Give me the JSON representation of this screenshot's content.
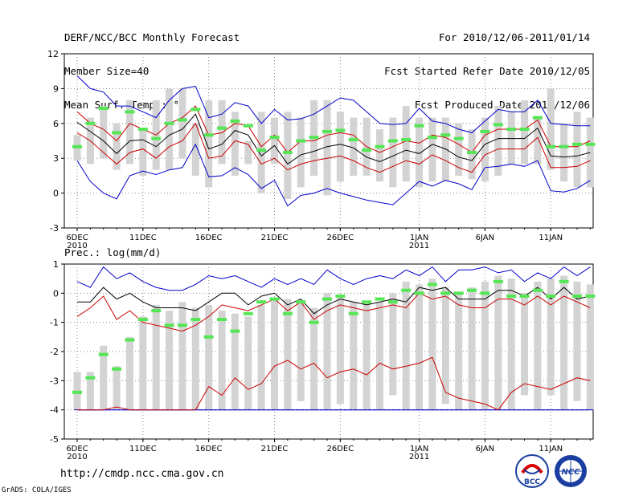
{
  "header": {
    "left": [
      "DERF/NCC/BCC Monthly Forecast",
      "Member Size=40",
      "Mean Surf. Temp.: °C"
    ],
    "right": [
      "For 2010/12/06-2011/01/14",
      "Fcst Started Refer Date 2010/12/05",
      "Fcst Produced Date 2010/12/06"
    ]
  },
  "footer": {
    "url": "http://cmdp.ncc.cma.gov.cn",
    "grads": "GrADS: COLA/IGES",
    "logo_bcc": "BCC",
    "logo_ncc": "NCC"
  },
  "colors": {
    "box": "#d3d3d3",
    "median": "#55e655",
    "mean": "#000000",
    "inner": "#cc0000",
    "outer": "#0000cc",
    "grid": "#888888"
  },
  "chart_data": [
    {
      "type": "box-ensemble",
      "title": "Mean Surf. Temp.: °C",
      "ylim": [
        -3,
        12
      ],
      "yticks": [
        -3,
        0,
        3,
        6,
        9,
        12
      ],
      "x_tick_labels": [
        {
          "day": 1,
          "label": "6DEC",
          "sub": "2010"
        },
        {
          "day": 6,
          "label": "11DEC",
          "sub": ""
        },
        {
          "day": 11,
          "label": "16DEC",
          "sub": ""
        },
        {
          "day": 16,
          "label": "21DEC",
          "sub": ""
        },
        {
          "day": 21,
          "label": "26DEC",
          "sub": ""
        },
        {
          "day": 27,
          "label": "1JAN",
          "sub": "2011"
        },
        {
          "day": 32,
          "label": "6JAN",
          "sub": ""
        },
        {
          "day": 37,
          "label": "11JAN",
          "sub": ""
        }
      ],
      "days": 40,
      "box_low": [
        2.8,
        2.5,
        3.0,
        2.0,
        2.5,
        1.5,
        2.0,
        2.0,
        3.0,
        1.5,
        0.5,
        2.5,
        1.5,
        2.5,
        0.0,
        2.5,
        -0.5,
        0.5,
        1.5,
        -0.2,
        1.0,
        1.5,
        1.5,
        1.0,
        0.5,
        1.0,
        0.5,
        1.0,
        1.0,
        1.5,
        1.2,
        1.0,
        1.5,
        2.5,
        2.5,
        2.5,
        2.0,
        1.0,
        0.5,
        0.5
      ],
      "box_high": [
        5.0,
        6.5,
        7.5,
        6.0,
        8.0,
        5.5,
        8.0,
        9.0,
        9.0,
        6.0,
        8.0,
        8.0,
        7.0,
        4.5,
        7.0,
        6.5,
        7.0,
        6.5,
        8.0,
        8.0,
        7.0,
        6.5,
        6.5,
        5.5,
        6.5,
        7.5,
        6.5,
        6.5,
        6.5,
        6.0,
        5.5,
        6.5,
        7.5,
        7.0,
        8.0,
        6.5,
        9.0,
        6.0,
        7.0,
        6.5
      ],
      "median": [
        4.0,
        6.0,
        7.3,
        5.2,
        7.0,
        5.5,
        4.7,
        6.0,
        6.3,
        7.2,
        5.0,
        5.6,
        6.2,
        5.8,
        3.7,
        4.8,
        3.5,
        4.5,
        4.8,
        5.3,
        5.4,
        4.6,
        3.7,
        4.0,
        4.5,
        4.6,
        5.8,
        4.8,
        5.0,
        4.7,
        3.5,
        5.3,
        5.9,
        5.5,
        5.5,
        6.5,
        4.0,
        4.0,
        4.2,
        4.2
      ],
      "mean": [
        6.1,
        5.3,
        4.5,
        3.4,
        4.5,
        4.6,
        4.0,
        5.0,
        5.5,
        6.8,
        3.8,
        4.2,
        5.4,
        5.0,
        3.2,
        4.1,
        2.5,
        3.3,
        3.6,
        4.0,
        4.2,
        3.9,
        3.1,
        2.7,
        3.2,
        3.7,
        3.4,
        4.2,
        3.8,
        3.1,
        2.8,
        4.2,
        4.7,
        4.7,
        4.7,
        5.6,
        3.2,
        3.1,
        3.2,
        3.5
      ],
      "inner_high": [
        7.0,
        6.0,
        5.5,
        4.5,
        6.0,
        5.5,
        5.0,
        6.0,
        6.5,
        7.5,
        5.0,
        5.2,
        6.0,
        5.8,
        4.0,
        5.0,
        3.5,
        4.5,
        4.5,
        5.0,
        5.2,
        5.0,
        4.0,
        3.5,
        4.0,
        4.5,
        4.3,
        5.0,
        4.8,
        4.2,
        3.5,
        5.0,
        5.5,
        5.5,
        5.5,
        6.3,
        4.0,
        4.0,
        4.0,
        4.5
      ],
      "inner_low": [
        5.2,
        4.5,
        3.5,
        2.5,
        3.5,
        3.8,
        3.0,
        4.0,
        4.5,
        6.0,
        3.0,
        3.2,
        4.5,
        4.2,
        2.5,
        3.0,
        2.0,
        2.5,
        2.8,
        3.0,
        3.2,
        2.8,
        2.2,
        1.8,
        2.3,
        2.8,
        2.5,
        3.3,
        2.8,
        2.2,
        1.8,
        3.3,
        3.8,
        3.8,
        3.8,
        4.8,
        2.2,
        2.2,
        2.3,
        2.8
      ],
      "outer_high": [
        10.1,
        9.0,
        8.7,
        7.5,
        7.5,
        7.0,
        6.5,
        8.0,
        9.0,
        9.2,
        6.5,
        6.8,
        7.8,
        7.5,
        6.0,
        7.2,
        6.3,
        6.4,
        6.8,
        7.5,
        8.2,
        8.0,
        7.0,
        6.0,
        5.9,
        6.0,
        7.3,
        6.2,
        6.0,
        5.5,
        5.2,
        6.2,
        7.2,
        7.0,
        7.0,
        8.0,
        6.0,
        5.9,
        5.8,
        5.8
      ],
      "outer_low": [
        2.8,
        1.0,
        0.0,
        -0.5,
        1.5,
        1.9,
        1.6,
        2.0,
        2.2,
        4.2,
        1.4,
        1.5,
        2.2,
        1.6,
        0.4,
        1.1,
        -1.1,
        -0.2,
        0.0,
        0.4,
        0.0,
        -0.3,
        -0.6,
        -0.8,
        -1.0,
        0.0,
        1.0,
        0.6,
        1.1,
        0.8,
        0.3,
        2.2,
        2.3,
        2.5,
        2.3,
        2.8,
        0.2,
        0.1,
        0.4,
        1.1
      ]
    },
    {
      "type": "box-ensemble",
      "title": "Prec.: log(mm/d)",
      "ylim": [
        -5,
        1
      ],
      "yticks": [
        -5,
        -4,
        -3,
        -2,
        -1,
        0,
        1
      ],
      "x_tick_labels": [
        {
          "day": 1,
          "label": "6DEC",
          "sub": "2010"
        },
        {
          "day": 6,
          "label": "11DEC",
          "sub": ""
        },
        {
          "day": 11,
          "label": "16DEC",
          "sub": ""
        },
        {
          "day": 16,
          "label": "21DEC",
          "sub": ""
        },
        {
          "day": 21,
          "label": "26DEC",
          "sub": ""
        },
        {
          "day": 27,
          "label": "1JAN",
          "sub": "2011"
        },
        {
          "day": 32,
          "label": "6JAN",
          "sub": ""
        },
        {
          "day": 37,
          "label": "11JAN",
          "sub": ""
        }
      ],
      "days": 40,
      "floor": -4,
      "box_low": [
        -4,
        -4,
        -4,
        -4,
        -4,
        -4,
        -4,
        -4,
        -4,
        -4,
        -4,
        -4,
        -4,
        -4,
        -4,
        -4,
        -4,
        -3.7,
        -4,
        -4,
        -3.8,
        -4,
        -4,
        -4,
        -3.5,
        -4,
        -4,
        -4,
        -3.8,
        -4,
        -4,
        -4,
        -4,
        -4,
        -3.5,
        -4,
        -3.5,
        -4,
        -3.7,
        -4
      ],
      "box_high": [
        -2.7,
        -2.7,
        -1.8,
        -2.5,
        -1.5,
        -0.8,
        -0.4,
        -0.6,
        -0.3,
        -0.5,
        -0.4,
        -0.6,
        -0.7,
        -0.8,
        -0.4,
        -0.2,
        -0.2,
        -0.3,
        -0.5,
        0.0,
        -0.1,
        -0.3,
        -0.3,
        -0.3,
        0.0,
        0.4,
        0.3,
        0.5,
        0.2,
        0.0,
        0.2,
        0.4,
        0.6,
        0.5,
        0.0,
        0.4,
        0.5,
        0.6,
        0.4,
        0.3
      ],
      "median": [
        -3.4,
        -2.9,
        -2.1,
        -2.6,
        -1.6,
        -0.9,
        -0.6,
        -1.1,
        -1.1,
        -0.9,
        -1.5,
        -0.9,
        -1.3,
        -0.7,
        -0.3,
        -0.2,
        -0.7,
        -0.3,
        -1.0,
        -0.2,
        -0.1,
        -0.7,
        -0.3,
        -0.2,
        -0.3,
        0.1,
        0.0,
        0.3,
        0.0,
        0.0,
        0.1,
        0.0,
        0.4,
        -0.1,
        -0.1,
        0.1,
        -0.1,
        0.4,
        -0.1,
        -0.1
      ],
      "mean": [
        -0.3,
        -0.3,
        0.2,
        -0.2,
        0.0,
        -0.3,
        -0.5,
        -0.5,
        -0.5,
        -0.6,
        -0.3,
        0.0,
        0.0,
        -0.4,
        -0.1,
        0.0,
        -0.4,
        -0.2,
        -0.7,
        -0.4,
        -0.2,
        -0.3,
        -0.4,
        -0.3,
        -0.2,
        -0.3,
        0.2,
        0.1,
        0.2,
        -0.2,
        -0.2,
        -0.2,
        0.1,
        0.1,
        -0.1,
        0.2,
        -0.2,
        0.2,
        -0.2,
        -0.1
      ],
      "inner_high": [
        -0.8,
        -0.5,
        -0.1,
        -0.9,
        -0.6,
        -1.0,
        -1.1,
        -1.2,
        -1.3,
        -1.1,
        -0.8,
        -0.4,
        -0.5,
        -0.6,
        -0.4,
        -0.2,
        -0.6,
        -0.3,
        -0.9,
        -0.6,
        -0.4,
        -0.5,
        -0.6,
        -0.5,
        -0.4,
        -0.5,
        0.0,
        -0.2,
        -0.1,
        -0.4,
        -0.5,
        -0.5,
        -0.2,
        -0.2,
        -0.4,
        -0.1,
        -0.4,
        -0.1,
        -0.3,
        -0.5
      ],
      "inner_low": [
        -4,
        -4,
        -4,
        -3.9,
        -4,
        -4,
        -4,
        -4,
        -4,
        -4,
        -3.2,
        -3.5,
        -2.9,
        -3.3,
        -3.1,
        -2.5,
        -2.3,
        -2.6,
        -2.4,
        -2.9,
        -2.7,
        -2.6,
        -2.8,
        -2.4,
        -2.6,
        -2.5,
        -2.4,
        -2.2,
        -3.4,
        -3.6,
        -3.7,
        -3.8,
        -4,
        -3.4,
        -3.1,
        -3.2,
        -3.3,
        -3.1,
        -2.9,
        -3.0
      ],
      "outer_high": [
        0.4,
        0.2,
        0.9,
        0.5,
        0.7,
        0.4,
        0.2,
        0.1,
        0.1,
        0.3,
        0.6,
        0.5,
        0.6,
        0.4,
        0.2,
        0.5,
        0.3,
        0.5,
        0.3,
        0.8,
        0.5,
        0.3,
        0.5,
        0.6,
        0.5,
        0.8,
        0.6,
        0.9,
        0.4,
        0.8,
        0.8,
        0.9,
        0.7,
        0.8,
        0.4,
        0.7,
        0.5,
        0.9,
        0.6,
        0.9
      ],
      "outer_low": [
        -4,
        -4,
        -4,
        -4,
        -4,
        -4,
        -4,
        -4,
        -4,
        -4,
        -4,
        -4,
        -4,
        -4,
        -4,
        -4,
        -4,
        -4,
        -4,
        -4,
        -4,
        -4,
        -4,
        -4,
        -4,
        -4,
        -4,
        -4,
        -4,
        -4,
        -4,
        -4,
        -4,
        -4,
        -4,
        -4,
        -4,
        -4,
        -4,
        -4
      ]
    }
  ]
}
